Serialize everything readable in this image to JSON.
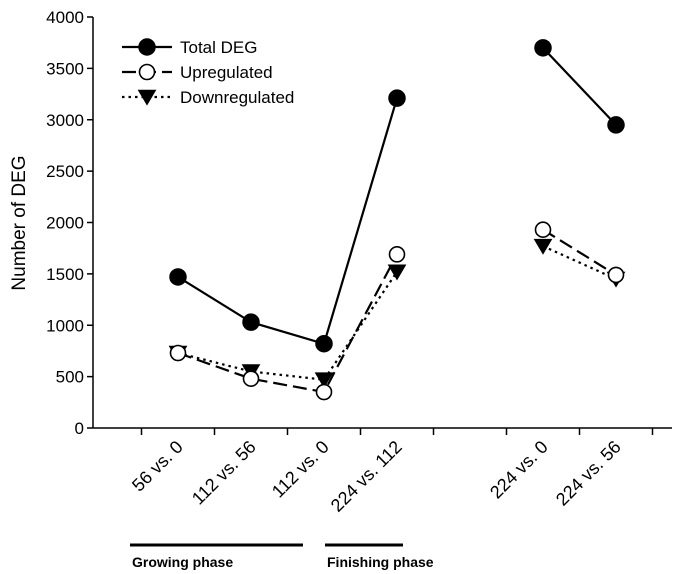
{
  "chart_data": {
    "type": "line",
    "ylabel": "Number of DEG",
    "ylim": [
      0,
      4000
    ],
    "yticks": [
      0,
      500,
      1000,
      1500,
      2000,
      2500,
      3000,
      3500,
      4000
    ],
    "categories": [
      "56 vs. 0",
      "112 vs. 56",
      "112 vs. 0",
      "224 vs. 112",
      "",
      "224 vs. 0",
      "224 vs. 56"
    ],
    "legend_position": "top-left",
    "grid": false,
    "series": [
      {
        "name": "Total DEG",
        "marker": "filled-circle",
        "line": "solid",
        "segments": [
          [
            1470,
            1030,
            820,
            3210
          ],
          [
            3700,
            2950
          ]
        ]
      },
      {
        "name": "Upregulated",
        "marker": "open-circle",
        "line": "dashed",
        "segments": [
          [
            730,
            480,
            350,
            1690
          ],
          [
            1930,
            1490
          ]
        ]
      },
      {
        "name": "Downregulated",
        "marker": "filled-triangle-down",
        "line": "dotted",
        "segments": [
          [
            730,
            550,
            470,
            1520
          ],
          [
            1770,
            1450
          ]
        ]
      }
    ],
    "segment_indices": [
      [
        0,
        1,
        2,
        3
      ],
      [
        5,
        6
      ]
    ],
    "phases": [
      {
        "label": "Growing phase",
        "from": 0,
        "to": 2
      },
      {
        "label": "Finishing phase",
        "from": 3,
        "to": 3
      }
    ]
  }
}
